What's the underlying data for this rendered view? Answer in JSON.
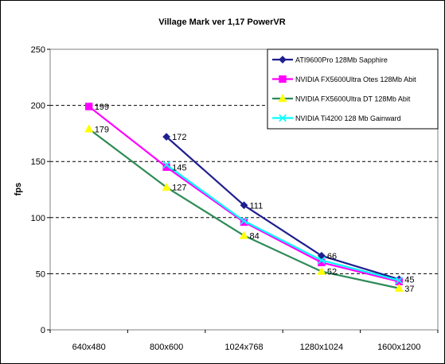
{
  "chart_data": {
    "type": "line",
    "title": "Village Mark ver 1,17 PowerVR",
    "xlabel": "",
    "ylabel": "fps",
    "categories": [
      "640x480",
      "800x600",
      "1024x768",
      "1280x1024",
      "1600x1200"
    ],
    "ylim": [
      0,
      250
    ],
    "yticks": [
      0,
      50,
      100,
      150,
      200,
      250
    ],
    "grid": "horizontal dashed",
    "legend_position": "top-right",
    "series": [
      {
        "name": "ATI9600Pro 128Mb Sapphire",
        "color": "#1f1f8f",
        "marker": "diamond",
        "values": [
          null,
          172,
          111,
          66,
          45
        ],
        "labels": [
          null,
          "172",
          "111",
          "66",
          "45"
        ]
      },
      {
        "name": "NVIDIA FX5600Ultra Otes 128Mb Abit",
        "color": "#ff00ff",
        "marker": "square",
        "values": [
          199,
          145,
          96,
          60,
          43
        ],
        "labels": [
          "199",
          "145",
          null,
          null,
          null
        ]
      },
      {
        "name": "NVIDIA FX5600Ultra DT 128Mb Abit",
        "color": "#2e8b57",
        "marker": "triangle",
        "values": [
          179,
          127,
          84,
          52,
          37
        ],
        "labels": [
          "179",
          "127",
          "84",
          "52",
          "37"
        ]
      },
      {
        "name": "NVIDIA Ti4200 128 Mb Gainward",
        "color": "#00ffff",
        "marker": "x",
        "values": [
          null,
          147,
          97,
          62,
          44
        ],
        "labels": [
          null,
          null,
          null,
          null,
          null
        ]
      }
    ],
    "marker_fill": {
      "triangle": "#ffff00"
    }
  }
}
